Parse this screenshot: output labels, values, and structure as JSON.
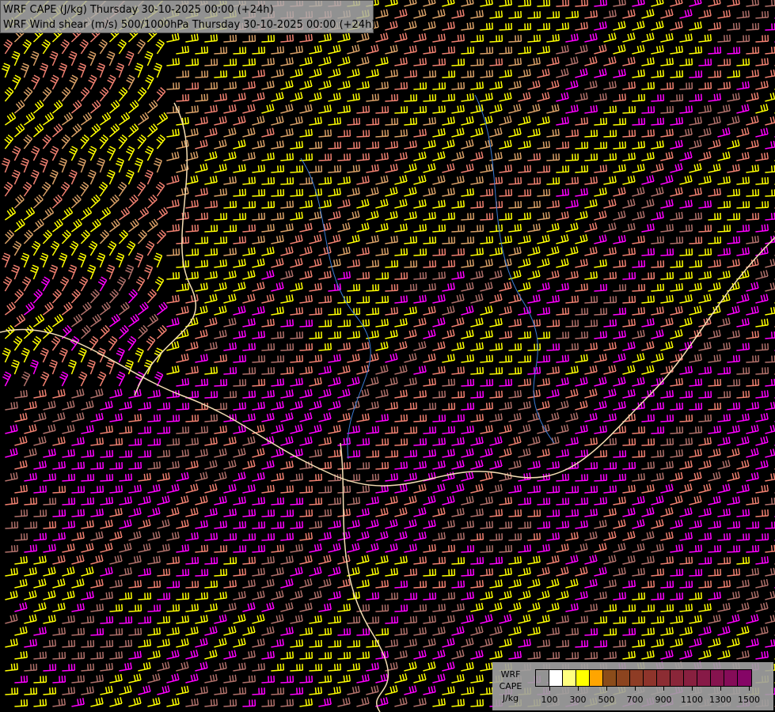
{
  "title": {
    "line1": "WRF CAPE (J/kg) Thursday 30-10-2025 00:00 (+24h)",
    "line2": "WRF Wind shear (m/s) 500/1000hPa Thursday 30-10-2025 00:00 (+24h)"
  },
  "legend": {
    "label_lines": [
      "WRF",
      "CAPE",
      "J/kg"
    ],
    "colors": [
      "transparent",
      "#ffffff",
      "#ffff80",
      "#ffff00",
      "#ffa500",
      "#8b4c1a",
      "#8c441f",
      "#8e3c25",
      "#8e342b",
      "#8c2d33",
      "#8a2639",
      "#88203f",
      "#871a47",
      "#86134e",
      "#850c58",
      "#850566"
    ],
    "tick_labels": [
      "100",
      "300",
      "500",
      "700",
      "900",
      "1100",
      "1300",
      "1500"
    ]
  },
  "barb_colors": [
    "#ffff00",
    "#d9a066",
    "#f08070",
    "#ff00ff",
    "#b0706a"
  ],
  "border_color": "#f5deb3",
  "river_color": "#3a7bd5"
}
